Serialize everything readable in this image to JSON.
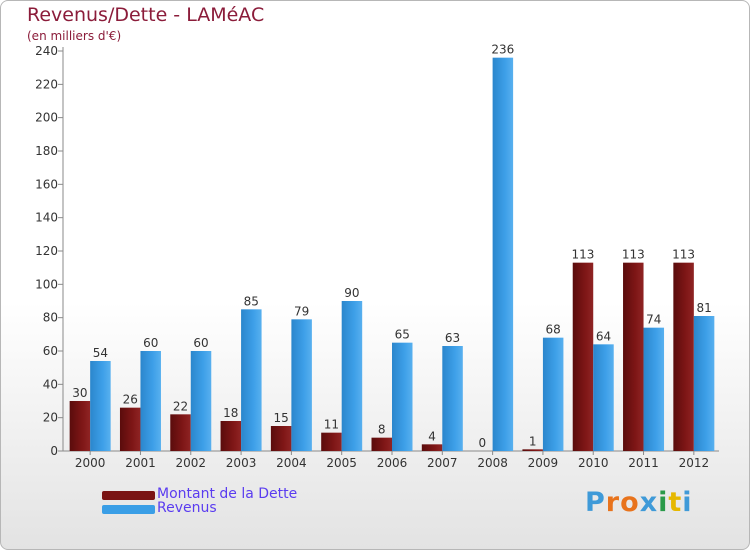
{
  "header": {
    "title": "Revenus/Dette - LAMéAC",
    "subtitle": "(en milliers d'€)"
  },
  "legend": {
    "items": [
      {
        "label": "Montant de la Dette",
        "color": "#7a1414"
      },
      {
        "label": "Revenus",
        "color": "#3a9ee6"
      }
    ]
  },
  "logo": {
    "text": "Proxiti",
    "colors": [
      "#3f9ad8",
      "#e8731c",
      "#e8731c",
      "#3f9ad8",
      "#2a9a4a",
      "#e6b800",
      "#3f9ad8"
    ]
  },
  "chart_data": {
    "type": "bar",
    "categories": [
      "2000",
      "2001",
      "2002",
      "2003",
      "2004",
      "2005",
      "2006",
      "2007",
      "2008",
      "2009",
      "2010",
      "2011",
      "2012"
    ],
    "series": [
      {
        "name": "Montant de la Dette",
        "color": "#7a1414",
        "values": [
          30,
          26,
          22,
          18,
          15,
          11,
          8,
          4,
          0,
          1,
          113,
          113,
          113
        ]
      },
      {
        "name": "Revenus",
        "color": "#3a9ee6",
        "values": [
          54,
          60,
          60,
          85,
          79,
          90,
          65,
          63,
          236,
          68,
          64,
          74,
          81
        ]
      }
    ],
    "yticks": [
      0,
      20,
      40,
      60,
      80,
      100,
      120,
      140,
      160,
      180,
      200,
      220,
      240
    ],
    "ylim": [
      0,
      240
    ],
    "grid": false,
    "legend_position": "bottom-left"
  }
}
